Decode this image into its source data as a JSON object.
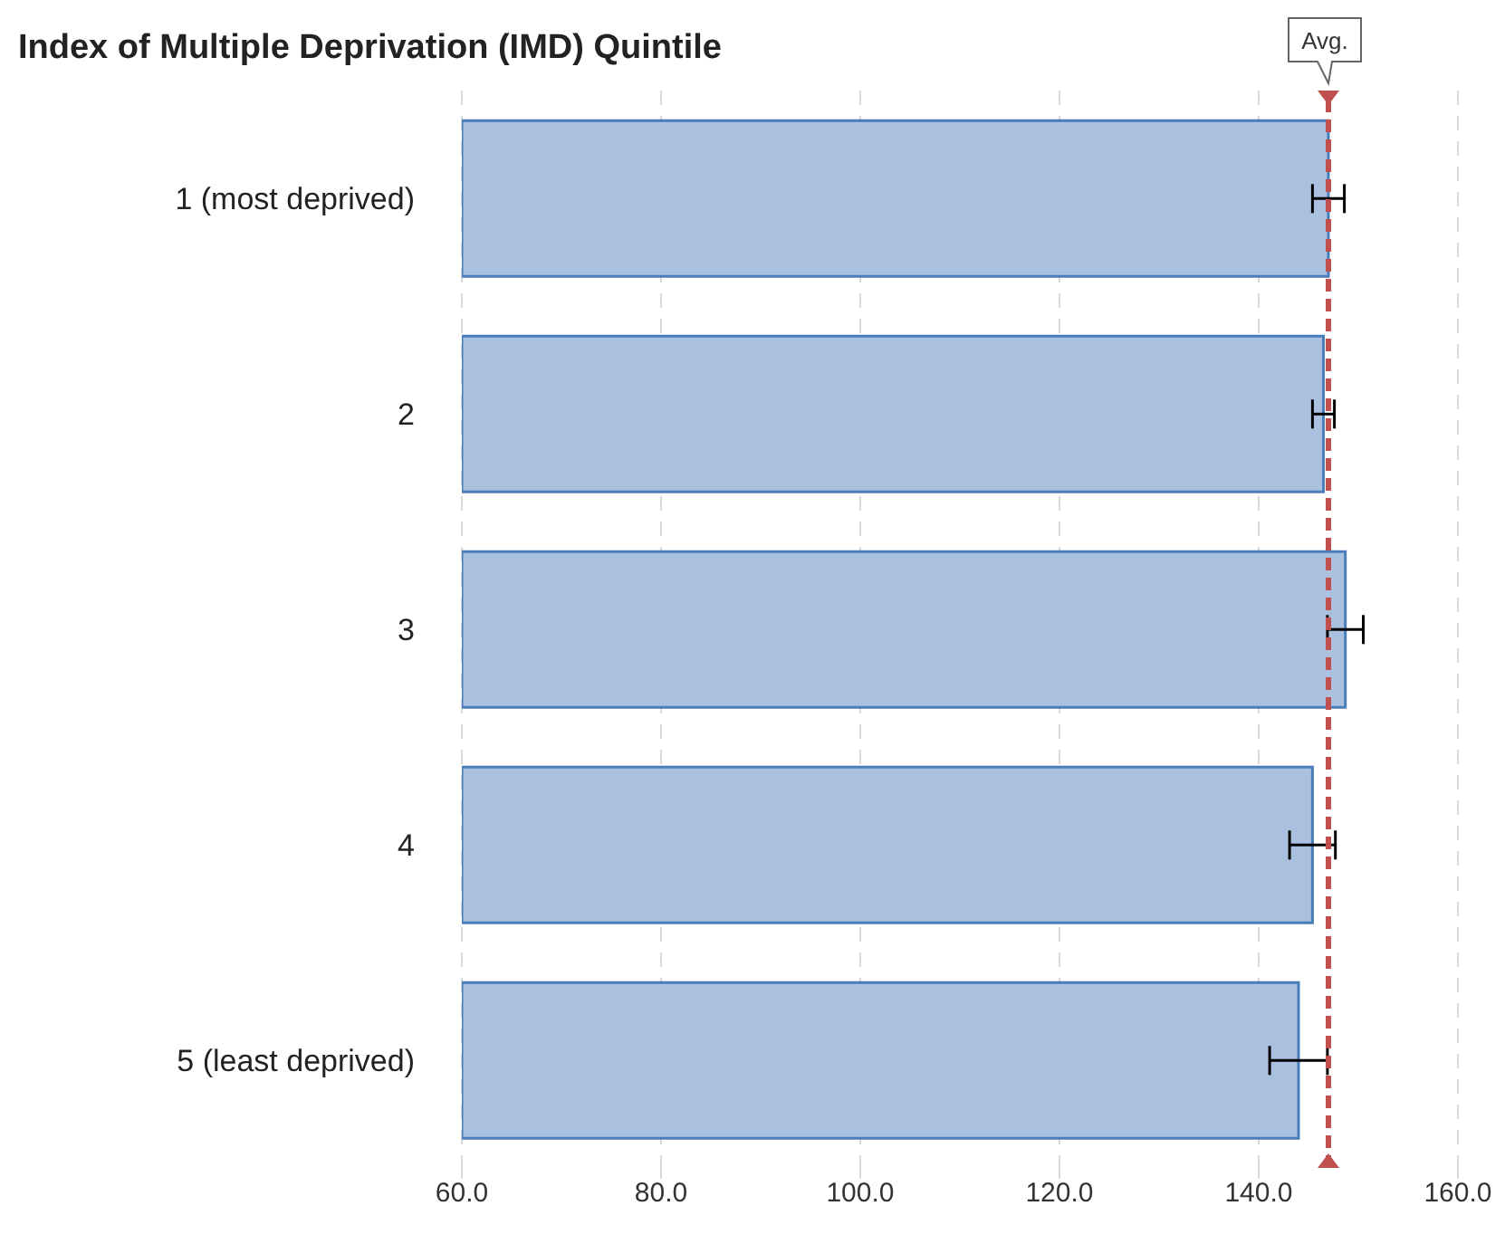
{
  "chart_data": {
    "type": "bar",
    "orientation": "horizontal",
    "title": "Index of Multiple Deprivation (IMD) Quintile",
    "categories": [
      "1 (most deprived)",
      "2",
      "3",
      "4",
      "5 (least deprived)"
    ],
    "values": [
      147.0,
      146.5,
      148.7,
      145.4,
      144.0
    ],
    "errors": [
      1.6,
      1.1,
      1.8,
      2.3,
      2.9
    ],
    "color": "#a9c0df",
    "xlim": [
      60,
      160
    ],
    "xticks": [
      {
        "value": 60,
        "label": "60.0"
      },
      {
        "value": 80,
        "label": "80.0"
      },
      {
        "value": 100,
        "label": "100.0"
      },
      {
        "value": 120,
        "label": "120.0"
      },
      {
        "value": 140,
        "label": "140.0"
      },
      {
        "value": 160,
        "label": "160.0"
      }
    ],
    "grid": "x",
    "ref_lines": [
      {
        "axis": "x",
        "value": 147.0,
        "label": "Avg.",
        "color": "#c0504d",
        "line_style": "dashed"
      }
    ]
  }
}
